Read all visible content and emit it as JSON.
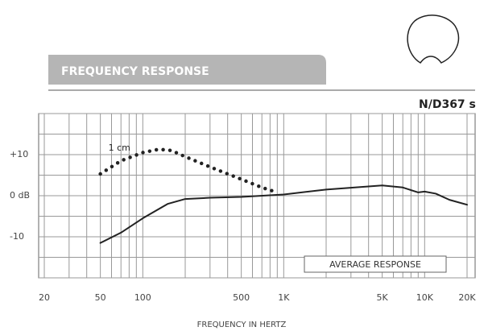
{
  "chart_data": {
    "type": "line",
    "title": "FREQUENCY RESPONSE",
    "subtitle": "N/D367 s",
    "x_label": "FREQUENCY IN HERTZ",
    "log_x": true,
    "xlim": [
      20,
      20000
    ],
    "ylim": [
      -20,
      20
    ],
    "xticks": [
      20,
      50,
      100,
      500,
      {
        "value": 1000,
        "label": "1K"
      },
      {
        "value": 5000,
        "label": "5K"
      },
      {
        "value": 10000,
        "label": "10K"
      },
      {
        "value": 20000,
        "label": "20K"
      }
    ],
    "yticks": [
      {
        "value": 10,
        "label": "+10"
      },
      {
        "value": 0,
        "label": "0 dB"
      },
      -10
    ],
    "xgrid": [
      20,
      30,
      40,
      50,
      60,
      70,
      80,
      90,
      100,
      200,
      300,
      400,
      500,
      600,
      700,
      800,
      900,
      1000,
      2000,
      3000,
      4000,
      5000,
      6000,
      7000,
      8000,
      9000,
      10000,
      20000
    ],
    "ygrid": [
      -20,
      -15,
      -10,
      -5,
      0,
      5,
      10,
      15,
      20
    ],
    "series": [
      {
        "name": "1 cm",
        "color": "#222222",
        "dotted": true,
        "x": [
          50,
          70,
          100,
          130,
          160,
          200,
          300,
          500,
          700,
          900
        ],
        "values": [
          5.3,
          8.5,
          10.5,
          11.3,
          11,
          9.5,
          7,
          4,
          2,
          0.8
        ]
      },
      {
        "name": "AVERAGE RESPONSE",
        "color": "#222222",
        "dotted": false,
        "x": [
          50,
          70,
          100,
          150,
          200,
          300,
          500,
          1000,
          2000,
          5000,
          7000,
          9000,
          10000,
          12000,
          15000,
          20000
        ],
        "values": [
          -11.5,
          -9,
          -5.5,
          -2,
          -0.8,
          -0.5,
          -0.3,
          0.3,
          1.5,
          2.5,
          2,
          0.8,
          1,
          0.5,
          -1,
          -2.2
        ]
      }
    ]
  }
}
